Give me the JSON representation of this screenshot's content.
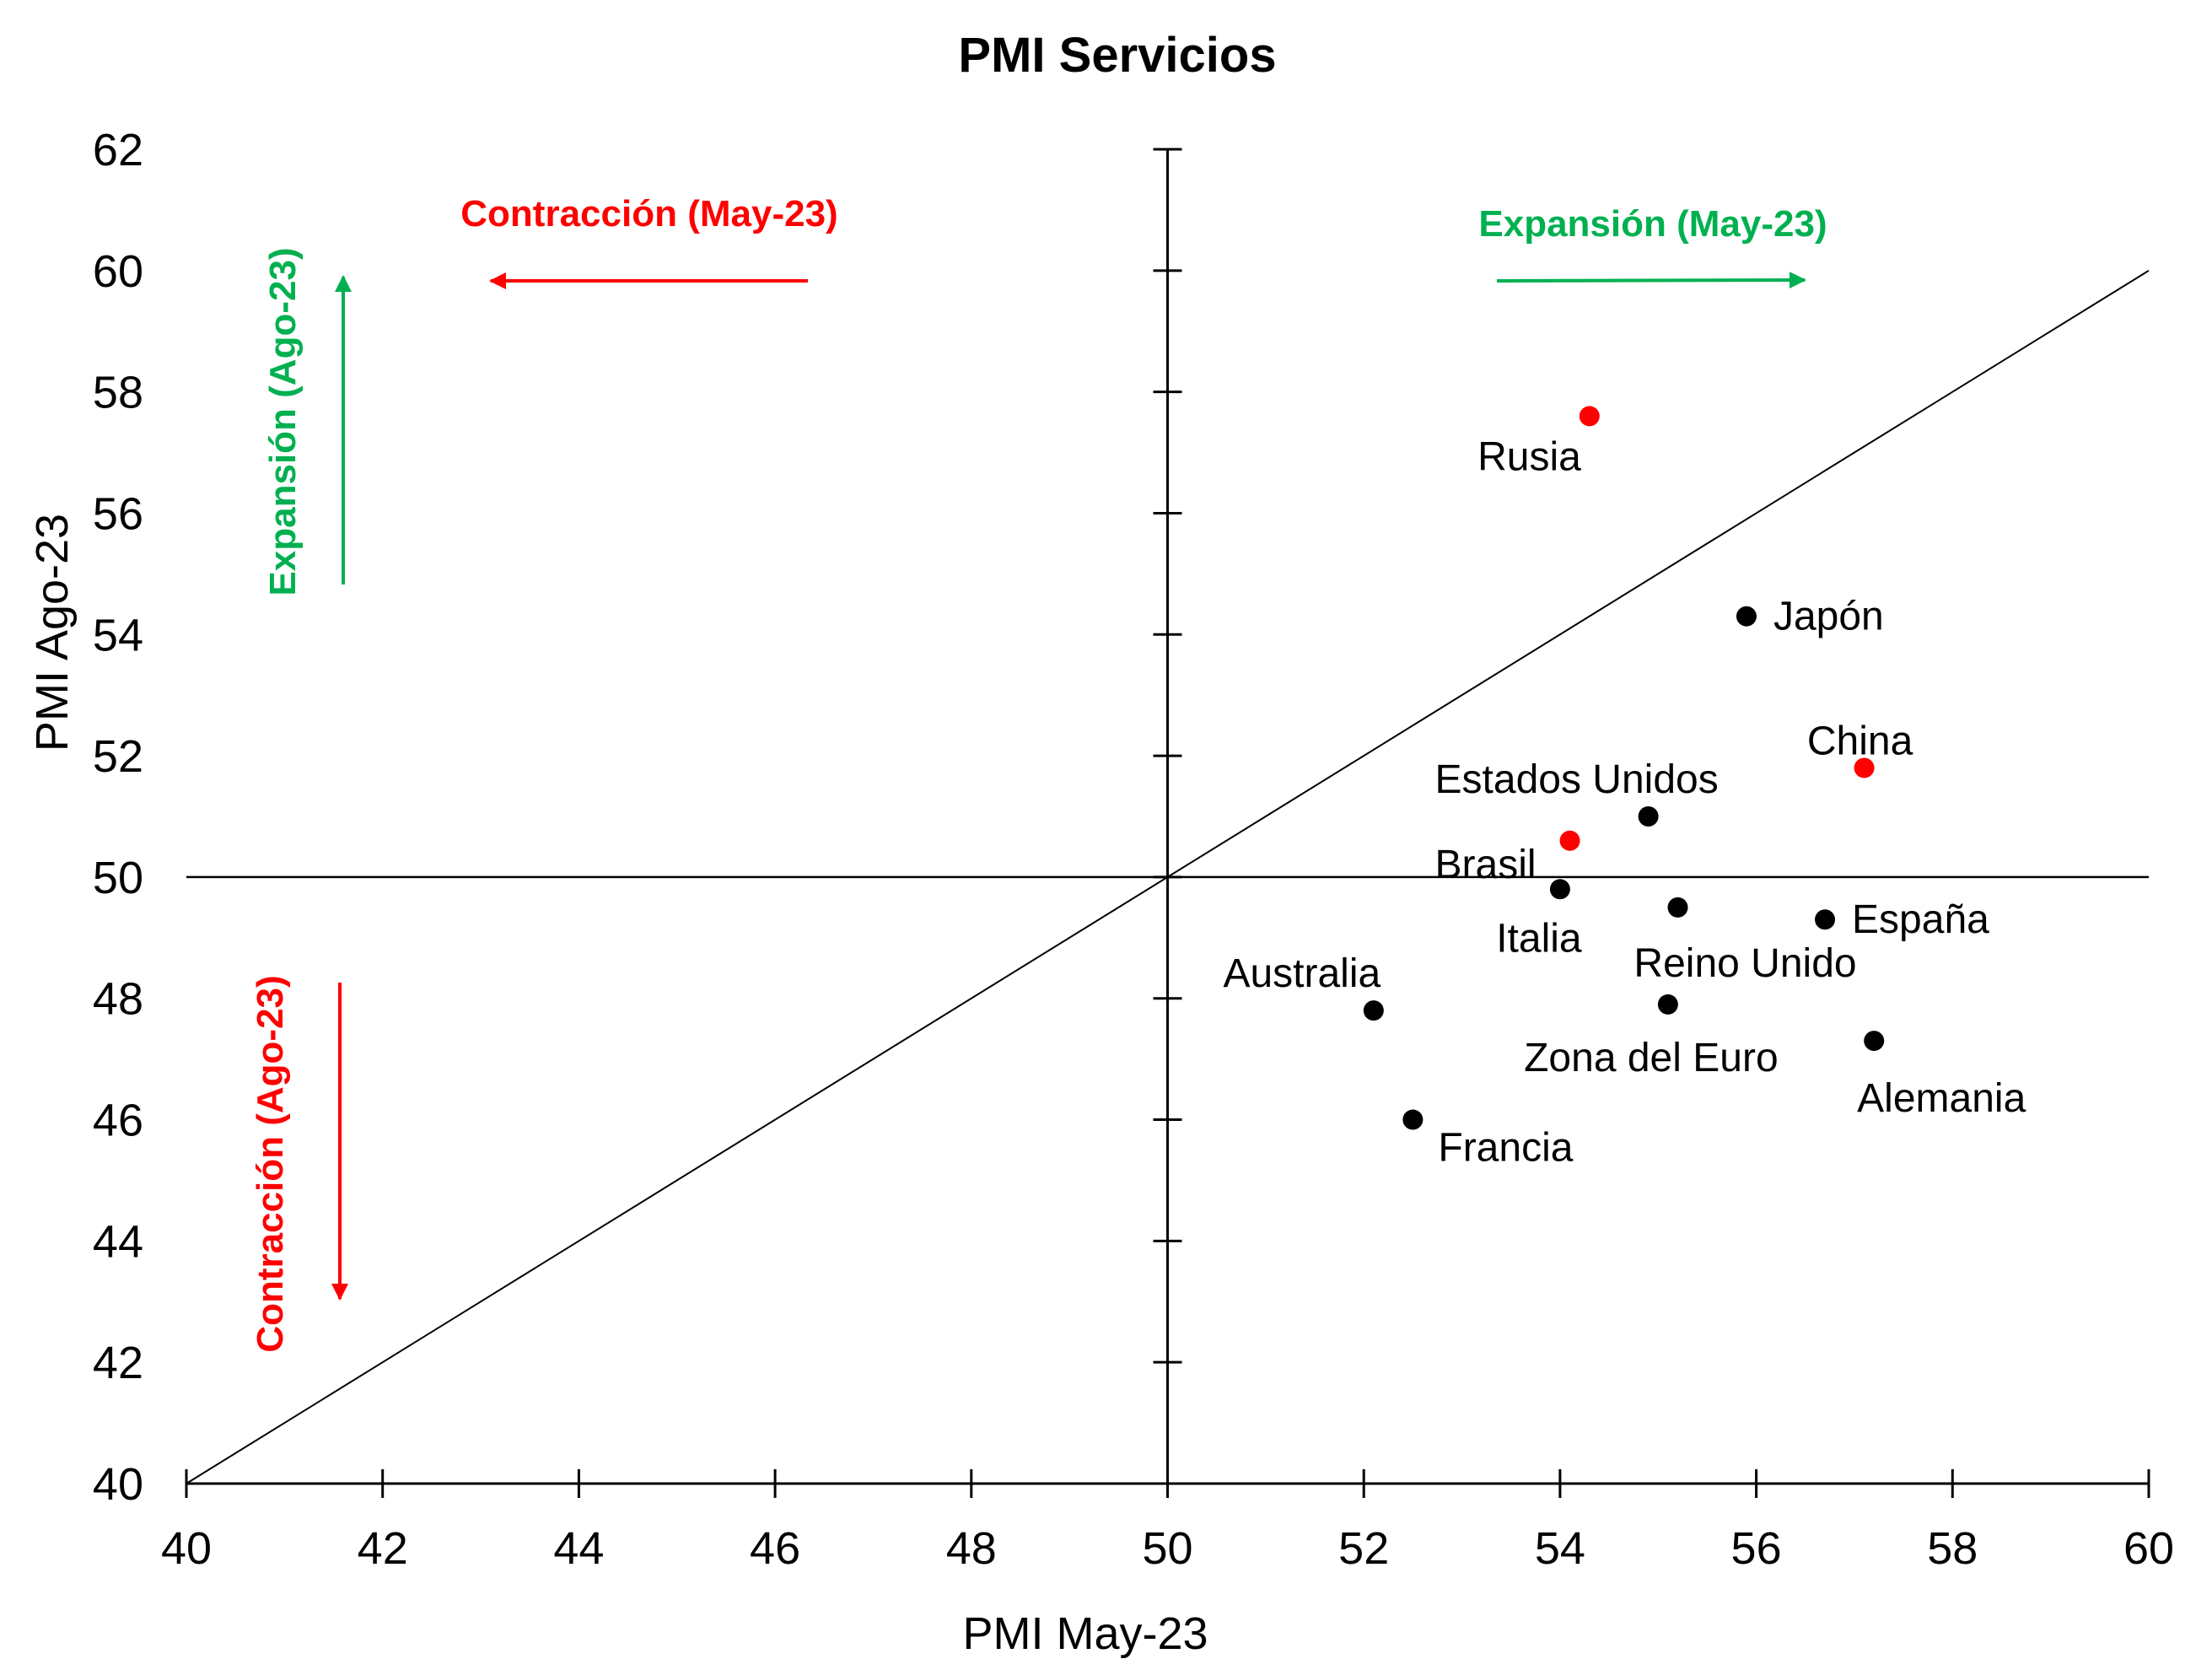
{
  "chart_data": {
    "type": "scatter",
    "title": "PMI Servicios",
    "xlabel": "PMI May-23",
    "ylabel": "PMI Ago-23",
    "xlim": [
      40,
      60
    ],
    "ylim": [
      40,
      62
    ],
    "xticks": [
      "40",
      "42",
      "44",
      "46",
      "48",
      "50",
      "52",
      "54",
      "56",
      "58",
      "60"
    ],
    "yticks": [
      "40",
      "42",
      "44",
      "46",
      "48",
      "50",
      "52",
      "54",
      "56",
      "58",
      "60",
      "62"
    ],
    "grid": false,
    "reference_lines": {
      "vertical_x": 50,
      "horizontal_y": 50,
      "diagonal": "y = x"
    },
    "colors": {
      "highlight": "#FF0000",
      "default": "#000000",
      "expansion": "#00B050",
      "contraction": "#FF0000"
    },
    "points": [
      {
        "label": "Rusia",
        "x": 54.3,
        "y": 57.6,
        "color": "#FF0000",
        "label_pos": "left-below"
      },
      {
        "label": "Japón",
        "x": 55.9,
        "y": 54.3,
        "color": "#000000",
        "label_pos": "right"
      },
      {
        "label": "China",
        "x": 57.1,
        "y": 51.8,
        "color": "#FF0000",
        "label_pos": "above"
      },
      {
        "label": "Estados Unidos",
        "x": 54.9,
        "y": 51.0,
        "color": "#000000",
        "label_pos": "above-left"
      },
      {
        "label": "Brasil",
        "x": 54.1,
        "y": 50.6,
        "color": "#FF0000",
        "label_pos": "left"
      },
      {
        "label": "Italia",
        "x": 54.0,
        "y": 49.8,
        "color": "#000000",
        "label_pos": "below-left"
      },
      {
        "label": "Reino Unido",
        "x": 55.2,
        "y": 49.5,
        "color": "#000000",
        "label_pos": "below"
      },
      {
        "label": "España",
        "x": 56.7,
        "y": 49.3,
        "color": "#000000",
        "label_pos": "right"
      },
      {
        "label": "Australia",
        "x": 52.1,
        "y": 47.8,
        "color": "#000000",
        "label_pos": "above-left"
      },
      {
        "label": "Zona del Euro",
        "x": 55.1,
        "y": 47.9,
        "color": "#000000",
        "label_pos": "below-left"
      },
      {
        "label": "Alemania",
        "x": 57.2,
        "y": 47.3,
        "color": "#000000",
        "label_pos": "below"
      },
      {
        "label": "Francia",
        "x": 52.5,
        "y": 46.0,
        "color": "#000000",
        "label_pos": "right-below"
      }
    ],
    "annotations": [
      {
        "id": "contraccion-may",
        "text": "Contracción (May-23)",
        "color": "#FF0000",
        "direction": "left",
        "quadrant": "top-left"
      },
      {
        "id": "expansion-may",
        "text": "Expansión (May-23)",
        "color": "#00B050",
        "direction": "right",
        "quadrant": "top-right"
      },
      {
        "id": "expansion-ago",
        "text": "Expansión (Ago-23)",
        "color": "#00B050",
        "direction": "up",
        "quadrant": "left-upper"
      },
      {
        "id": "contraccion-ago",
        "text": "Contracción (Ago-23)",
        "color": "#FF0000",
        "direction": "down",
        "quadrant": "left-lower"
      }
    ]
  }
}
